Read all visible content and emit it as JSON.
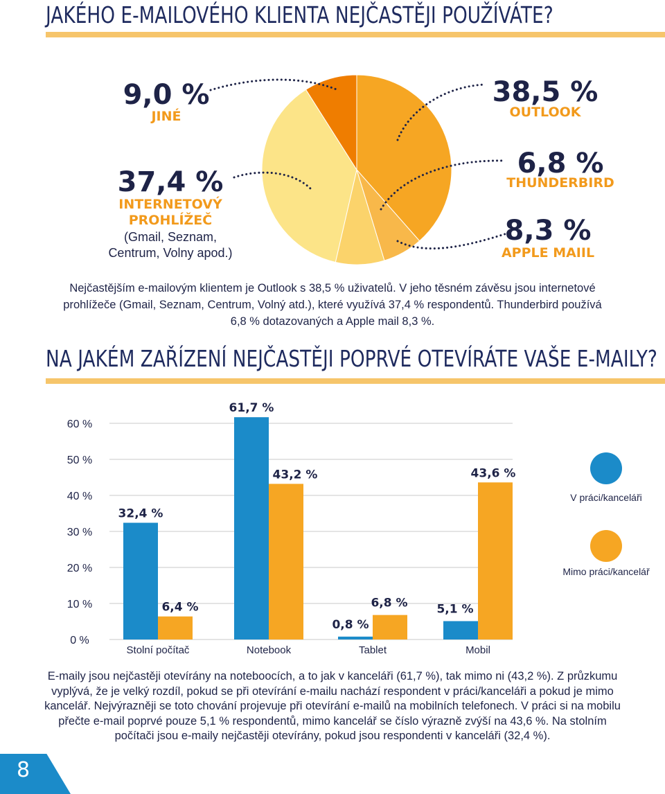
{
  "section1": {
    "title": "Jakého e-mailového klienta nejčastěji používáte?",
    "paragraph": "Nejčastějším e-mailovým klientem je Outlook s 38,5 % uživatelů. V jeho těsném závěsu jsou internetové prohlížeče (Gmail, Seznam, Centrum, Volný atd.), které využívá 37,4 % respondentů. Thunderbird používá 6,8 % dotazovaných a Apple mail 8,3 %.",
    "labels": {
      "jine": {
        "value": "9,0 %",
        "name": "JINÉ"
      },
      "browser": {
        "value": "37,4 %",
        "name_line1": "INTERNETOVÝ",
        "name_line2": "PROHLÍŽEČ",
        "note_line1": "(Gmail, Seznam,",
        "note_line2": "Centrum, Volny apod.)"
      },
      "outlook": {
        "value": "38,5 %",
        "name": "OUTLOOK"
      },
      "thunderbird": {
        "value": "6,8 %",
        "name": "THUNDERBIRD"
      },
      "apple": {
        "value": "8,3 %",
        "name": "APPLE MAIIL"
      }
    }
  },
  "section2": {
    "title": "Na jakém zařízení nejčastěji poprvé otevíráte vaše e-maily?",
    "paragraph": "E-maily jsou nejčastěji otevírány na noteboocích, a to jak v kanceláři (61,7 %), tak mimo ni (43,2 %). Z průzkumu vyplývá, že je velký rozdíl, pokud se při otevírání e-mailu nachází respondent v práci/kanceláři a pokud je mimo kancelář. Nejvýrazněji se toto chování projevuje při otevírání e-mailů na mobilních telefonech. V práci si na mobilu přečte e-mail poprvé pouze 5,1 % respondentů, mimo kancelář se číslo výrazně zvýší na 43,6 %. Na stolním počítači jsou e-maily nejčastěji otevírány, pokud jsou respondenti v kanceláři (32,4 %)."
  },
  "page_number": "8",
  "colors": {
    "navy": "#1e2347",
    "blue": "#1b8bc9",
    "orange": "#f6a623",
    "label_orange": "#f29a1c",
    "rule": "#f6c56b"
  },
  "chart_data": [
    {
      "type": "pie",
      "slices": [
        {
          "label": "OUTLOOK",
          "value": 38.5,
          "value_label": "38,5 %",
          "color": "#f6a623"
        },
        {
          "label": "THUNDERBIRD",
          "value": 6.8,
          "value_label": "6,8 %",
          "color": "#f8b84a"
        },
        {
          "label": "APPLE MAIIL",
          "value": 8.3,
          "value_label": "8,3 %",
          "color": "#fbd36b"
        },
        {
          "label": "INTERNETOVÝ PROHLÍŽEČ",
          "value": 37.4,
          "value_label": "37,4 %",
          "color": "#fce488"
        },
        {
          "label": "JINÉ",
          "value": 9.0,
          "value_label": "9,0 %",
          "color": "#ef7d00"
        }
      ]
    },
    {
      "type": "bar",
      "categories": [
        "Stolní počítač",
        "Notebook",
        "Tablet",
        "Mobil"
      ],
      "series": [
        {
          "name": "V práci/kanceláři",
          "color": "#1b8bc9",
          "values": [
            32.4,
            61.7,
            0.8,
            5.1
          ],
          "value_labels": [
            "32,4 %",
            "61,7 %",
            "0,8 %",
            "5,1 %"
          ]
        },
        {
          "name": "Mimo práci/kancelář",
          "color": "#f6a623",
          "values": [
            6.4,
            43.2,
            6.8,
            43.6
          ],
          "value_labels": [
            "6,4 %",
            "43,2 %",
            "6,8 %",
            "43,6 %"
          ]
        }
      ],
      "yticks": [
        "0 %",
        "10 %",
        "20 %",
        "30 %",
        "40 %",
        "50 %",
        "60 %"
      ],
      "ylim": [
        0,
        60
      ],
      "grid": true,
      "legend": "right"
    }
  ]
}
